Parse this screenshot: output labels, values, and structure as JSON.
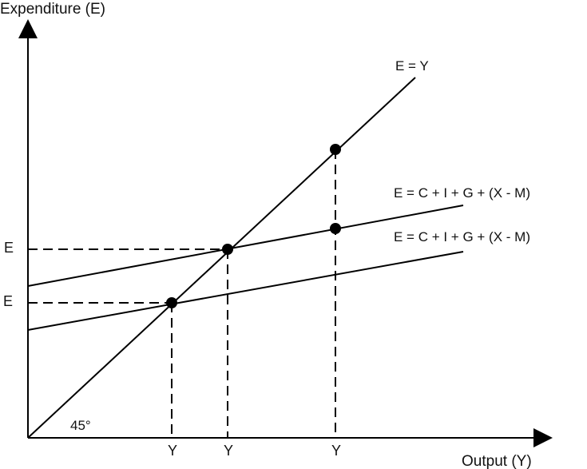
{
  "axes": {
    "y_title": "Expenditure (E)",
    "x_title": "Output (Y)"
  },
  "lines": {
    "forty_five": "E = Y",
    "upper_ae": "E = C + I + G + (X - M)",
    "lower_ae": "E = C + I + G + (X - M)"
  },
  "angle_label": "45°",
  "y_ticks": [
    "E",
    "E"
  ],
  "x_ticks": [
    "Y",
    "Y",
    "Y"
  ]
}
